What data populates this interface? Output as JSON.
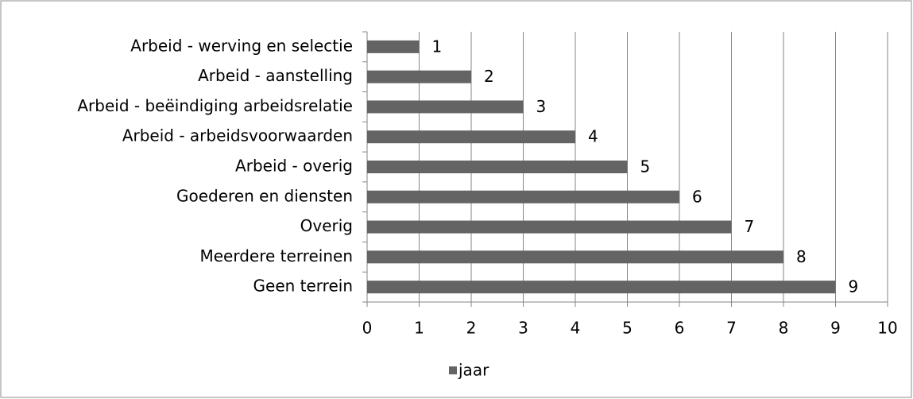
{
  "chart_data": {
    "type": "bar",
    "orientation": "horizontal",
    "categories": [
      "Arbeid - werving en selectie",
      "Arbeid - aanstelling",
      "Arbeid - beëindiging arbeidsrelatie",
      "Arbeid - arbeidsvoorwaarden",
      "Arbeid - overig",
      "Goederen en diensten",
      "Overig",
      "Meerdere terreinen",
      "Geen terrein"
    ],
    "series": [
      {
        "name": "jaar",
        "color": "#646464",
        "values": [
          1,
          2,
          3,
          4,
          5,
          6,
          7,
          8,
          9
        ]
      }
    ],
    "xlim": [
      0,
      10
    ],
    "xticks": [
      0,
      1,
      2,
      3,
      4,
      5,
      6,
      7,
      8,
      9,
      10
    ],
    "grid": true,
    "data_labels": true,
    "legend": "bottom"
  }
}
